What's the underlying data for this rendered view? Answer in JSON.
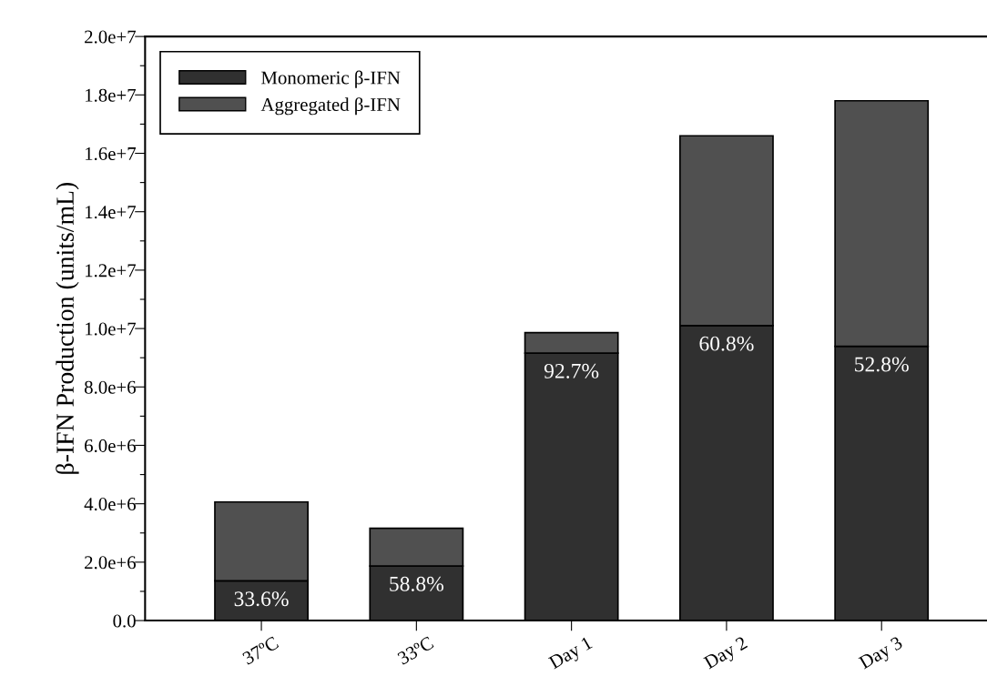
{
  "chart_data": {
    "type": "bar",
    "stacked": true,
    "ylabel": "β-IFN Production (units/mL)",
    "categories": [
      "37ºC",
      "33ºC",
      "Day 1",
      "Day 2",
      "Day 3"
    ],
    "series": [
      {
        "name": "Monomeric β-IFN",
        "color": "#303030",
        "values": [
          1360000.0,
          1870000.0,
          9160000.0,
          10100000.0,
          9390000.0
        ]
      },
      {
        "name": "Aggregated β-IFN",
        "color": "#505050",
        "values": [
          2700000.0,
          1290000.0,
          700000.0,
          6500000.0,
          8410000.0
        ]
      }
    ],
    "ylim": [
      0,
      20000000.0
    ],
    "yticks": [
      {
        "value": 0,
        "label": "0.0"
      },
      {
        "value": 1000000.0,
        "label": null
      },
      {
        "value": 2000000.0,
        "label": "2.0e+6"
      },
      {
        "value": 3000000.0,
        "label": null
      },
      {
        "value": 4000000.0,
        "label": "4.0e+6"
      },
      {
        "value": 5000000.0,
        "label": null
      },
      {
        "value": 6000000.0,
        "label": "6.0e+6"
      },
      {
        "value": 7000000.0,
        "label": null
      },
      {
        "value": 8000000.0,
        "label": "8.0e+6"
      },
      {
        "value": 9000000.0,
        "label": null
      },
      {
        "value": 10000000.0,
        "label": "1.0e+7"
      },
      {
        "value": 11000000.0,
        "label": null
      },
      {
        "value": 12000000.0,
        "label": "1.2e+7"
      },
      {
        "value": 13000000.0,
        "label": null
      },
      {
        "value": 14000000.0,
        "label": "1.4e+7"
      },
      {
        "value": 15000000.0,
        "label": null
      },
      {
        "value": 16000000.0,
        "label": "1.6e+7"
      },
      {
        "value": 17000000.0,
        "label": null
      },
      {
        "value": 18000000.0,
        "label": "1.8e+7"
      },
      {
        "value": 19000000.0,
        "label": null
      },
      {
        "value": 20000000.0,
        "label": "2.0e+7"
      }
    ],
    "annotations": [
      {
        "text": "33.6%",
        "x": "37ºC",
        "y": 1360000.0
      },
      {
        "text": "58.8%",
        "x": "33ºC",
        "y": 1870000.0
      },
      {
        "text": "92.7%",
        "x": "Day 1",
        "y": 9160000.0
      },
      {
        "text": "60.8%",
        "x": "Day 2",
        "y": 10100000.0
      },
      {
        "text": "52.8%",
        "x": "Day 3",
        "y": 9390000.0
      }
    ],
    "grid": false,
    "legend": "top left"
  }
}
